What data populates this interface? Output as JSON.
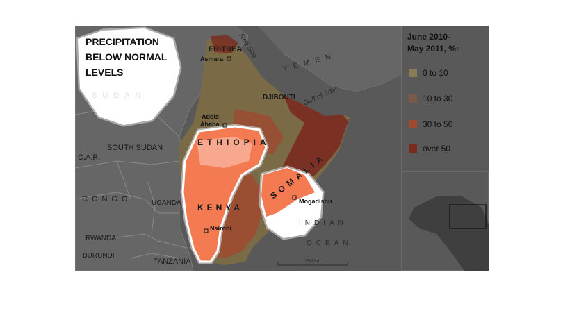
{
  "map": {
    "title_lines": [
      "PRECIPITATION",
      "BELOW NORMAL",
      "LEVELS"
    ],
    "legend": {
      "title_lines": [
        "June 2010-",
        "May 2011, %:"
      ],
      "items": [
        {
          "label": "0 to 10",
          "color": "#8a7a55"
        },
        {
          "label": "10 to 30",
          "color": "#7a5a48"
        },
        {
          "label": "30 to 50",
          "color": "#a04a30"
        },
        {
          "label": "over 50",
          "color": "#7a2a1e"
        }
      ]
    },
    "countries": {
      "eritrea": "ERITREA",
      "djibouti": "DJIBOUTI",
      "ethiopia": "ETHIOPIA",
      "somalia": "SOMALIA",
      "kenya": "KENYA",
      "sudan": "SUDAN",
      "south_sudan": "SOUTH SUDAN",
      "car": "C.A.R.",
      "congo": "CONGO",
      "uganda": "UGANDA",
      "rwanda": "RWANDA",
      "burundi": "BURUNDI",
      "tanzania": "TANZANIA",
      "yemen": "YEMEN"
    },
    "cities": {
      "asmara": "Asmara",
      "addis_line1": "Addis",
      "addis_line2": "Ababa",
      "mogadishu": "Mogadishu",
      "nairobi": "Nairobi"
    },
    "water": {
      "red_sea": "Red Sea",
      "gulf_of_aden": "Gulf of Aden",
      "indian_ocean_line1": "INDIAN",
      "indian_ocean_line2": "OCEAN"
    },
    "scale_label": "750 km"
  }
}
